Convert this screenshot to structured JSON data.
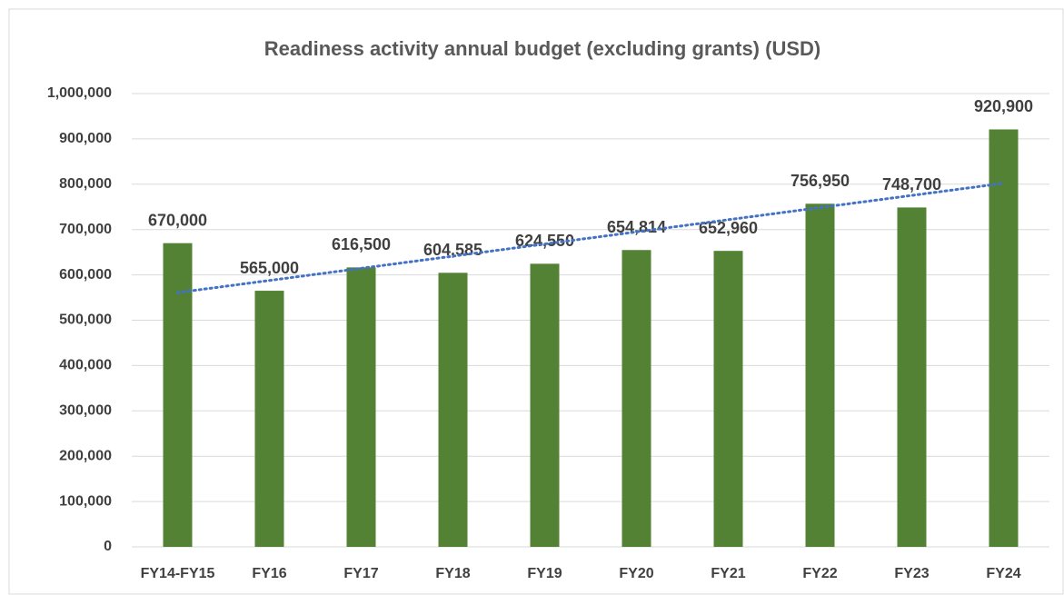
{
  "chart_data": {
    "type": "bar",
    "title": "Readiness activity annual budget (excluding grants) (USD)",
    "categories": [
      "FY14-FY15",
      "FY16",
      "FY17",
      "FY18",
      "FY19",
      "FY20",
      "FY21",
      "FY22",
      "FY23",
      "FY24"
    ],
    "values": [
      670000,
      565000,
      616500,
      604585,
      624550,
      654814,
      652960,
      756950,
      748700,
      920900
    ],
    "value_labels": [
      "670,000",
      "565,000",
      "616,500",
      "604,585",
      "624,550",
      "654,814",
      "652,960",
      "756,950",
      "748,700",
      "920,900"
    ],
    "color": "#548235",
    "ylim": [
      0,
      1000000
    ],
    "yticks": [
      0,
      {
        "value": 100000,
        "label": "100,000"
      },
      {
        "value": 200000,
        "label": "200,000"
      },
      {
        "value": 300000,
        "label": "300,000"
      },
      {
        "value": 400000,
        "label": "400,000"
      },
      {
        "value": 500000,
        "label": "500,000"
      },
      {
        "value": 600000,
        "label": "600,000"
      },
      {
        "value": 700000,
        "label": "700,000"
      },
      {
        "value": 800000,
        "label": "800,000"
      },
      {
        "value": 900000,
        "label": "900,000"
      },
      {
        "value": 1000000,
        "label": "1,000,000"
      }
    ],
    "grid": true,
    "trendline": true,
    "trendline_color": "#4472c4"
  }
}
